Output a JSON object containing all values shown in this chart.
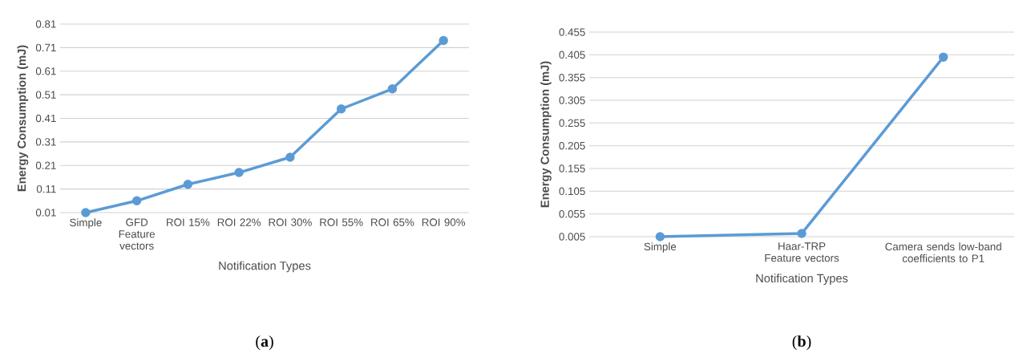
{
  "chart_data": [
    {
      "type": "line",
      "categories": [
        "Simple",
        "GFD Feature vectors",
        "ROI 15%",
        "ROI 22%",
        "ROI 30%",
        "ROI 55%",
        "ROI 65%",
        "ROI 90%"
      ],
      "values": [
        0.01,
        0.06,
        0.13,
        0.18,
        0.245,
        0.45,
        0.535,
        0.74
      ],
      "color": "#5b9bd5",
      "marker": "circle",
      "grid": "y",
      "ylim": [
        0.01,
        0.81
      ],
      "yticks": [
        0.01,
        0.11,
        0.21,
        0.31,
        0.41,
        0.51,
        0.61,
        0.71,
        0.81
      ],
      "xlabel": "Notification Types",
      "ylabel": "Energy Consumption (mJ)",
      "annotations": [
        "(**a**)"
      ]
    },
    {
      "type": "line",
      "categories": [
        "Simple",
        "Haar-TRP Feature vectors",
        "Camera sends low-band coefficients to P1"
      ],
      "values": [
        0.005,
        0.012,
        0.4
      ],
      "color": "#5b9bd5",
      "marker": "circle",
      "grid": "y",
      "ylim": [
        0.005,
        0.455
      ],
      "yticks": [
        0.005,
        0.055,
        0.105,
        0.155,
        0.205,
        0.255,
        0.305,
        0.355,
        0.405,
        0.455
      ],
      "xlabel": "Notification Types",
      "ylabel": "Energy Consumption (mJ)",
      "annotations": [
        "(**b**)"
      ]
    }
  ]
}
